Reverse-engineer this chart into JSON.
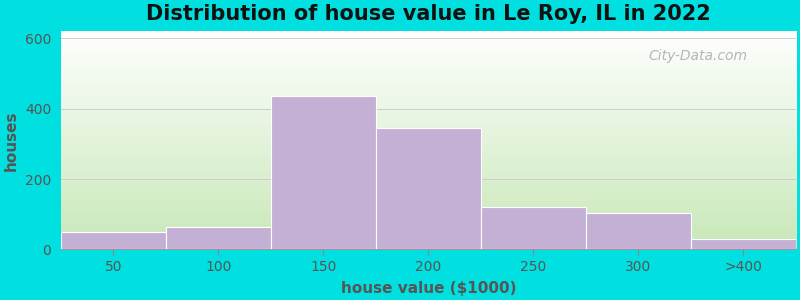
{
  "title": "Distribution of house value in Le Roy, IL in 2022",
  "xlabel": "house value ($1000)",
  "ylabel": "houses",
  "bar_labels": [
    "50",
    "100",
    "150",
    "200",
    "250",
    "300",
    ">400"
  ],
  "bar_heights": [
    50,
    65,
    435,
    345,
    120,
    105,
    30
  ],
  "bar_color": "#c4b0d5",
  "bar_edgecolor": "#ffffff",
  "ylim": [
    0,
    620
  ],
  "yticks": [
    0,
    200,
    400,
    600
  ],
  "bg_top_color": "#ffffff",
  "bg_bot_color": "#c8e8b8",
  "outer_bg": "#00e0e0",
  "title_fontsize": 15,
  "axis_label_fontsize": 11,
  "tick_fontsize": 10,
  "grid_color": "#cccccc",
  "watermark_text": "City-Data.com"
}
